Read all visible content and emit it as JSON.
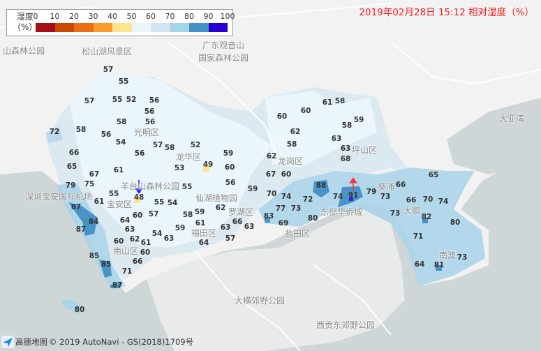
{
  "title": "2019年02月28日 15:12 相对湿度（%）",
  "legend": {
    "label_line1": "湿度",
    "label_line2": "（%）",
    "ticks": [
      "0",
      "10",
      "20",
      "30",
      "40",
      "50",
      "60",
      "70",
      "80",
      "90",
      "100"
    ],
    "colors": [
      "#a50f15",
      "#cb4a03",
      "#ea6e13",
      "#fd9a2a",
      "#fee391",
      "#e8f5fd",
      "#d2e4ef",
      "#a6d4eb",
      "#4292c6",
      "#2a00d0"
    ]
  },
  "places": [
    "山森林公园",
    "松山湖风景区",
    "广东观音山",
    "国家森林公园",
    "光明区",
    "龙华区",
    "羊台山森林公园",
    "深圳宝安国际机场",
    "宝安区",
    "南山区",
    "福田区",
    "仙湖植物园",
    "罗湖区",
    "龙岗区",
    "坪山区",
    "东部华侨城",
    "盐田区",
    "葵涌",
    "大鹏",
    "南澳",
    "大亚湾",
    "大横郊野公园",
    "西贡东郊野公园"
  ],
  "stations": [
    57,
    55,
    57,
    55,
    52,
    56,
    56,
    58,
    56,
    72,
    58,
    56,
    54,
    57,
    58,
    52,
    59,
    66,
    56,
    65,
    61,
    53,
    49,
    60,
    67,
    79,
    75,
    56,
    55,
    55,
    48,
    61,
    87,
    55,
    54,
    59,
    84,
    60,
    57,
    58,
    59,
    62,
    64,
    63,
    61,
    59,
    63,
    66,
    63,
    54,
    87,
    62,
    63,
    61,
    60,
    64,
    57,
    60,
    85,
    66,
    85,
    71,
    87,
    80,
    61,
    58,
    60,
    60,
    59,
    62,
    58,
    58,
    63,
    63,
    62,
    68,
    67,
    60,
    70,
    74,
    65,
    88,
    66,
    74,
    91,
    79,
    73,
    72,
    66,
    70,
    74,
    77,
    73,
    83,
    69,
    80,
    73,
    82,
    80,
    71,
    73,
    64,
    81
  ],
  "markers": {
    "wind_arrow_blue": "arrow-down",
    "wind_arrow_red": "arrow-up",
    "blue_color": "#1a1aff",
    "red_color": "#ff3333"
  },
  "footer": {
    "brand": "高德地图",
    "copyright": "© 2019 AutoNavi - GS(2018)1709号"
  }
}
